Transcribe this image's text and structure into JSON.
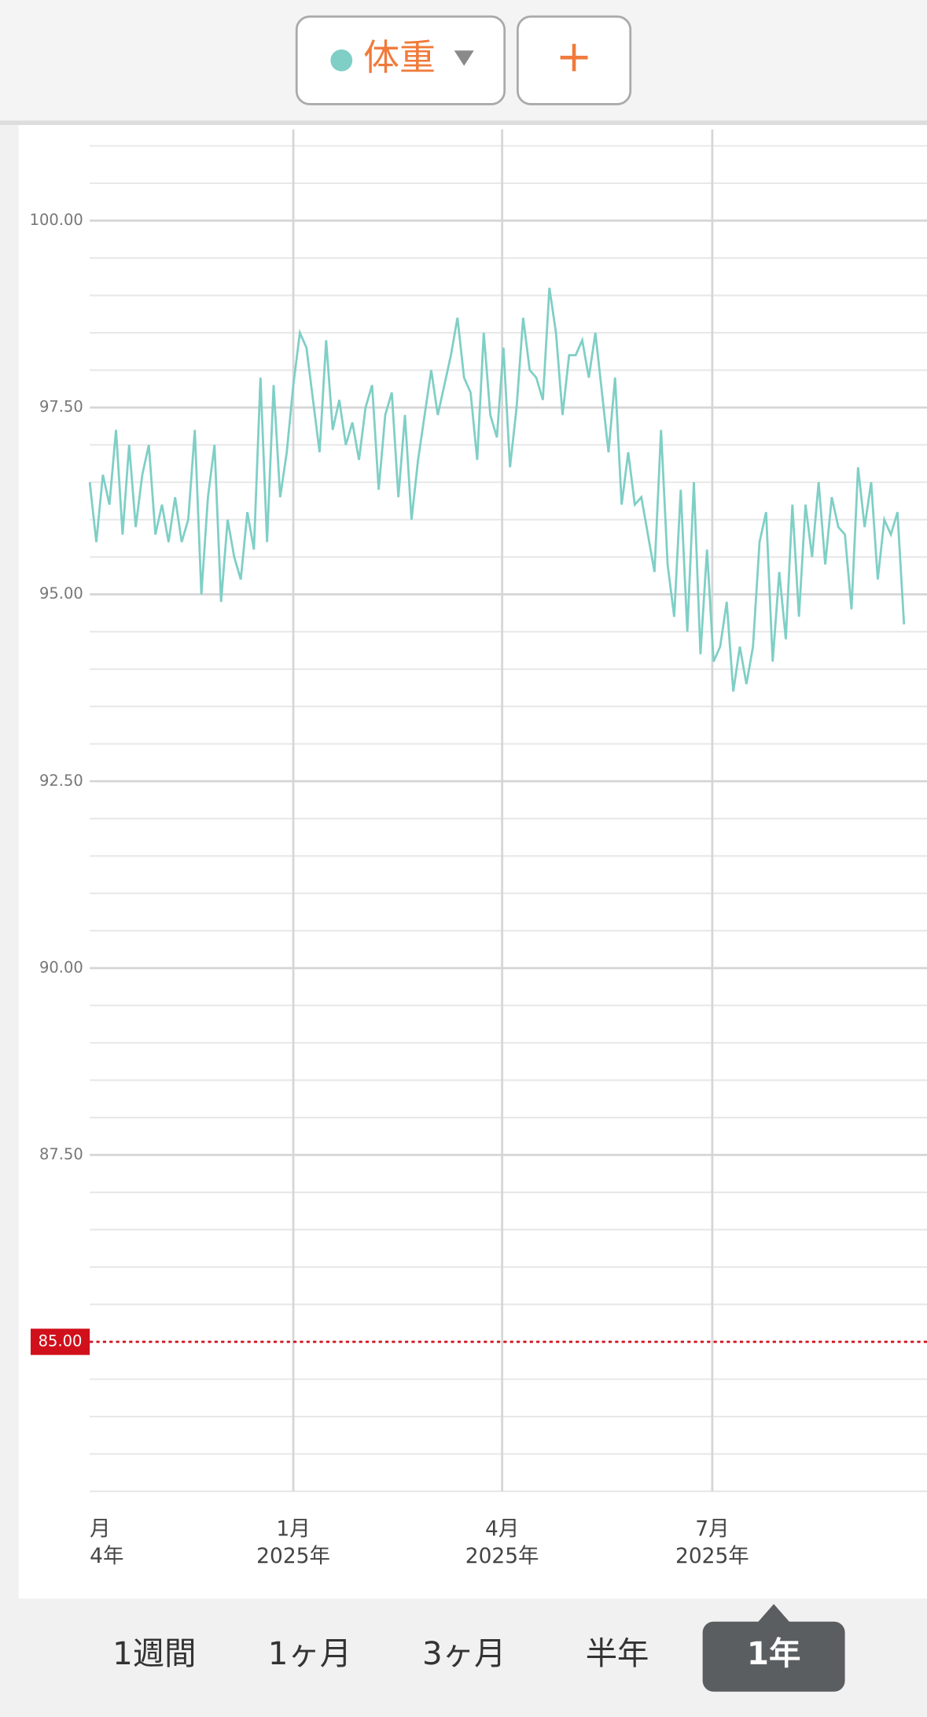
{
  "chart_data": {
    "type": "line",
    "series": [
      {
        "name": "体重",
        "color": "#7fcfc6",
        "values": [
          96.5,
          95.7,
          96.6,
          96.2,
          97.2,
          95.8,
          97.0,
          95.9,
          96.6,
          97.0,
          95.8,
          96.2,
          95.7,
          96.3,
          95.7,
          96.0,
          97.2,
          95.0,
          96.3,
          97.0,
          94.9,
          96.0,
          95.5,
          95.2,
          96.1,
          95.6,
          97.9,
          95.7,
          97.8,
          96.3,
          96.9,
          97.8,
          98.5,
          98.3,
          97.6,
          96.9,
          98.4,
          97.2,
          97.6,
          97.0,
          97.3,
          96.8,
          97.5,
          97.8,
          96.4,
          97.4,
          97.7,
          96.3,
          97.4,
          96.0,
          96.8,
          97.4,
          98.0,
          97.4,
          97.8,
          98.2,
          98.7,
          97.9,
          97.7,
          96.8,
          98.5,
          97.4,
          97.1,
          98.3,
          96.7,
          97.5,
          98.7,
          98.0,
          97.9,
          97.6,
          99.1,
          98.5,
          97.4,
          98.2,
          98.2,
          98.4,
          97.9,
          98.5,
          97.7,
          96.9,
          97.9,
          96.2,
          96.9,
          96.2,
          96.3,
          95.8,
          95.3,
          97.2,
          95.4,
          94.7,
          96.4,
          94.5,
          96.5,
          94.2,
          95.6,
          94.1,
          94.3,
          94.9,
          93.7,
          94.3,
          93.8,
          94.3,
          95.7,
          96.1,
          94.1,
          95.3,
          94.4,
          96.2,
          94.7,
          96.2,
          95.5,
          96.5,
          95.4,
          96.3,
          95.9,
          95.8,
          94.8,
          96.7,
          95.9,
          96.5,
          95.2,
          96.0,
          95.8,
          96.1,
          94.6
        ]
      }
    ],
    "xlim": [
      0,
      127.5
    ],
    "xticks": [
      {
        "value": 0,
        "label": "月",
        "label2": "4年"
      },
      {
        "value": 31,
        "label": "1月",
        "label2": "2025年"
      },
      {
        "value": 62.8,
        "label": "4月",
        "label2": "2025年"
      },
      {
        "value": 94.8,
        "label": "7月",
        "label2": "2025年"
      }
    ],
    "ylim": [
      83,
      101.28
    ],
    "yticks": [
      {
        "value": 87.5,
        "label": "87.50"
      },
      {
        "value": 90,
        "label": "90.00"
      },
      {
        "value": 92.5,
        "label": "92.50"
      },
      {
        "value": 95,
        "label": "95.00"
      },
      {
        "value": 97.5,
        "label": "97.50"
      },
      {
        "value": 100,
        "label": "100.00"
      }
    ],
    "minor_yticks": [
      83,
      83.5,
      84,
      84.5,
      85.5,
      86,
      86.5,
      87,
      88,
      88.5,
      89,
      89.5,
      90.5,
      91,
      91.5,
      92,
      93,
      93.5,
      94,
      94.5,
      95.5,
      96,
      96.5,
      97,
      98,
      98.5,
      99,
      99.5,
      100.5,
      101
    ],
    "target": {
      "value": 85,
      "label": "85.00",
      "color": "#d0101b"
    },
    "grid": true
  },
  "header": {
    "add_button": "+"
  },
  "period_tabs": {
    "options": [
      "1週間",
      "1ヶ月",
      "3ヶ月",
      "半年",
      "1年"
    ],
    "selected": 4
  }
}
